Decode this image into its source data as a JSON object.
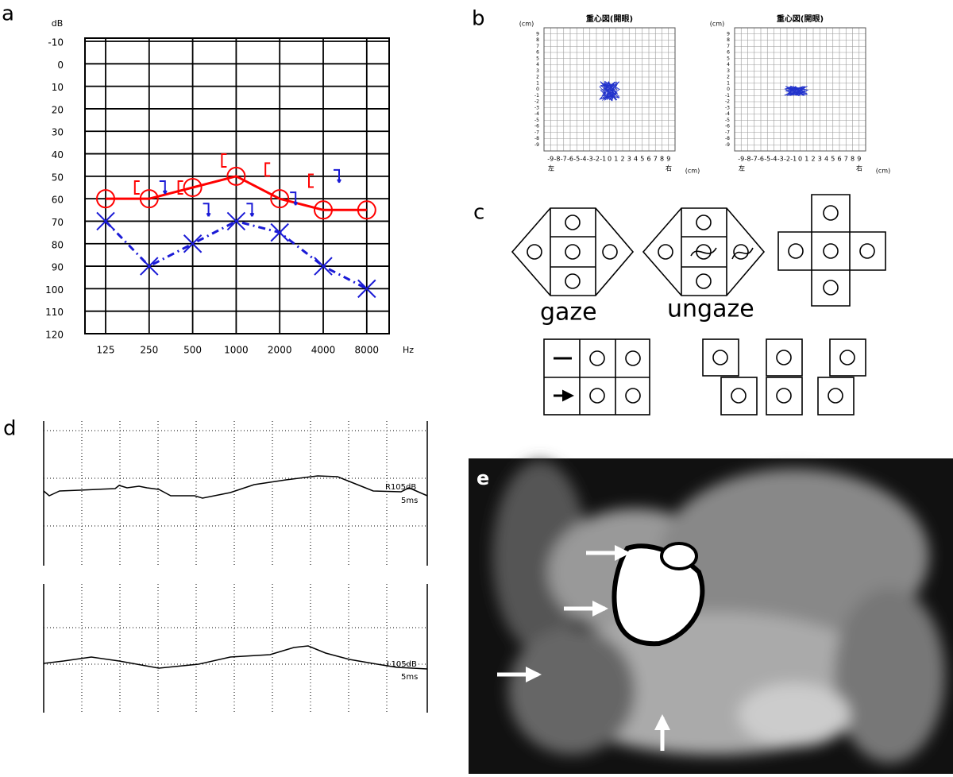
{
  "panel_labels": [
    "a",
    "b",
    "c",
    "d",
    "e"
  ],
  "chart_data": {
    "type": "line",
    "y_unit": "dB",
    "x_unit": "Hz",
    "categories": [
      "125",
      "250",
      "500",
      "1000",
      "2000",
      "4000",
      "8000"
    ],
    "ylim": [
      -10,
      120
    ],
    "yticks": [
      -10,
      0,
      10,
      20,
      30,
      40,
      50,
      60,
      70,
      80,
      90,
      100,
      110,
      120
    ],
    "y_inverted": true,
    "grid": true,
    "series": [
      {
        "color": "#ff0000",
        "marker": "circle",
        "line": "solid",
        "values": [
          60,
          60,
          55,
          50,
          60,
          65,
          65
        ]
      },
      {
        "color": "#1a1ad6",
        "marker": "x",
        "line": "dashdot",
        "values": [
          70,
          90,
          80,
          70,
          75,
          90,
          100
        ]
      },
      {
        "color": "#ff0000",
        "marker": "bracket-left",
        "line": "none",
        "values": [
          null,
          55,
          55,
          43,
          47,
          52,
          null
        ]
      },
      {
        "color": "#1a1ad6",
        "marker": "bracket-right-arrow",
        "line": "none",
        "values": [
          null,
          55,
          65,
          65,
          60,
          50,
          null
        ]
      }
    ]
  },
  "stabilometry": {
    "unit": "(cm)",
    "left": "左",
    "right": "右",
    "ticks": [
      -9,
      -8,
      -7,
      -6,
      -5,
      -4,
      -3,
      -2,
      -1,
      0,
      1,
      2,
      3,
      4,
      5,
      6,
      7,
      8,
      9
    ],
    "plots": [
      {
        "title": "重心図(開眼)"
      },
      {
        "title": "重心図(開眼)"
      }
    ]
  },
  "gaze": {
    "labels": [
      "gaze",
      "ungaze"
    ]
  },
  "abr": {
    "traces": [
      {
        "level": "R105dB",
        "scale": "5ms"
      },
      {
        "level": "L105dB",
        "scale": "5ms"
      }
    ]
  }
}
